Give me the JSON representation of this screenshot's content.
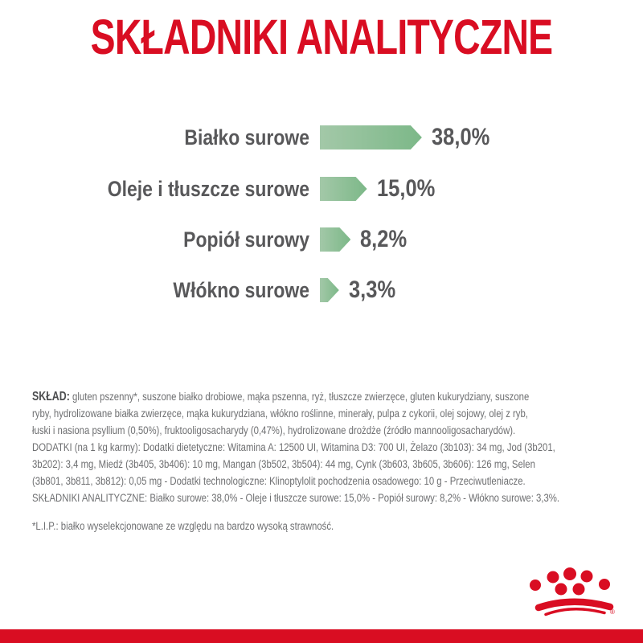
{
  "brand": {
    "color": "#D90D22",
    "logo": "Royal Canin crown",
    "registered_mark": "®"
  },
  "title": "SKŁADNIKI ANALITYCZNE",
  "chart_data": {
    "type": "bar",
    "orientation": "horizontal",
    "title": "SKŁADNIKI ANALITYCZNE",
    "categories": [
      "Białko surowe",
      "Oleje i tłuszcze surowe",
      "Popiół surowy",
      "Włókno surowe"
    ],
    "values": [
      38.0,
      15.0,
      8.2,
      3.3
    ],
    "value_labels": [
      "38,0%",
      "15,0%",
      "8,2%",
      "3,3%"
    ],
    "unit": "%",
    "xlim": [
      0,
      40
    ],
    "grid": false,
    "legend": "none",
    "bar_color_left": "#A3C8A8",
    "bar_color_right": "#7CB888",
    "text_color": "#58585A"
  },
  "composition": {
    "lead": "SKŁAD:",
    "lines": [
      "gluten pszenny*, suszone białko drobiowe, mąka pszenna, ryż, tłuszcze zwierzęce, gluten kukurydziany, suszone",
      "ryby, hydrolizowane białka zwierzęce, mąka kukurydziana, włókno roślinne, minerały, pulpa z cykorii, olej sojowy, olej z ryb,",
      "łuski i nasiona psyllium (0,50%), fruktooligosacharydy (0,47%), hydrolizowane drożdże (źródło mannooligosacharydów).",
      "DODATKI (na 1 kg karmy): Dodatki dietetyczne: Witamina A: 12500 UI, Witamina D3: 700 UI, Żelazo (3b103): 34 mg, Jod (3b201,",
      "3b202): 3,4 mg, Miedź (3b405, 3b406): 10 mg, Mangan (3b502, 3b504): 44 mg, Cynk (3b603, 3b605, 3b606): 126 mg, Selen",
      "(3b801, 3b811, 3b812): 0,05 mg - Dodatki technologiczne: Klinoptylolit pochodzenia osadowego: 10 g - Przeciwutleniacze.",
      "SKŁADNIKI ANALITYCZNE: Białko surowe: 38,0% - Oleje i tłuszcze surowe: 15,0% - Popiół surowy: 8,2% - Włókno surowe: 3,3%."
    ]
  },
  "footnote": "*L.I.P.: białko wyselekcjonowane ze względu na bardzo wysoką strawność."
}
